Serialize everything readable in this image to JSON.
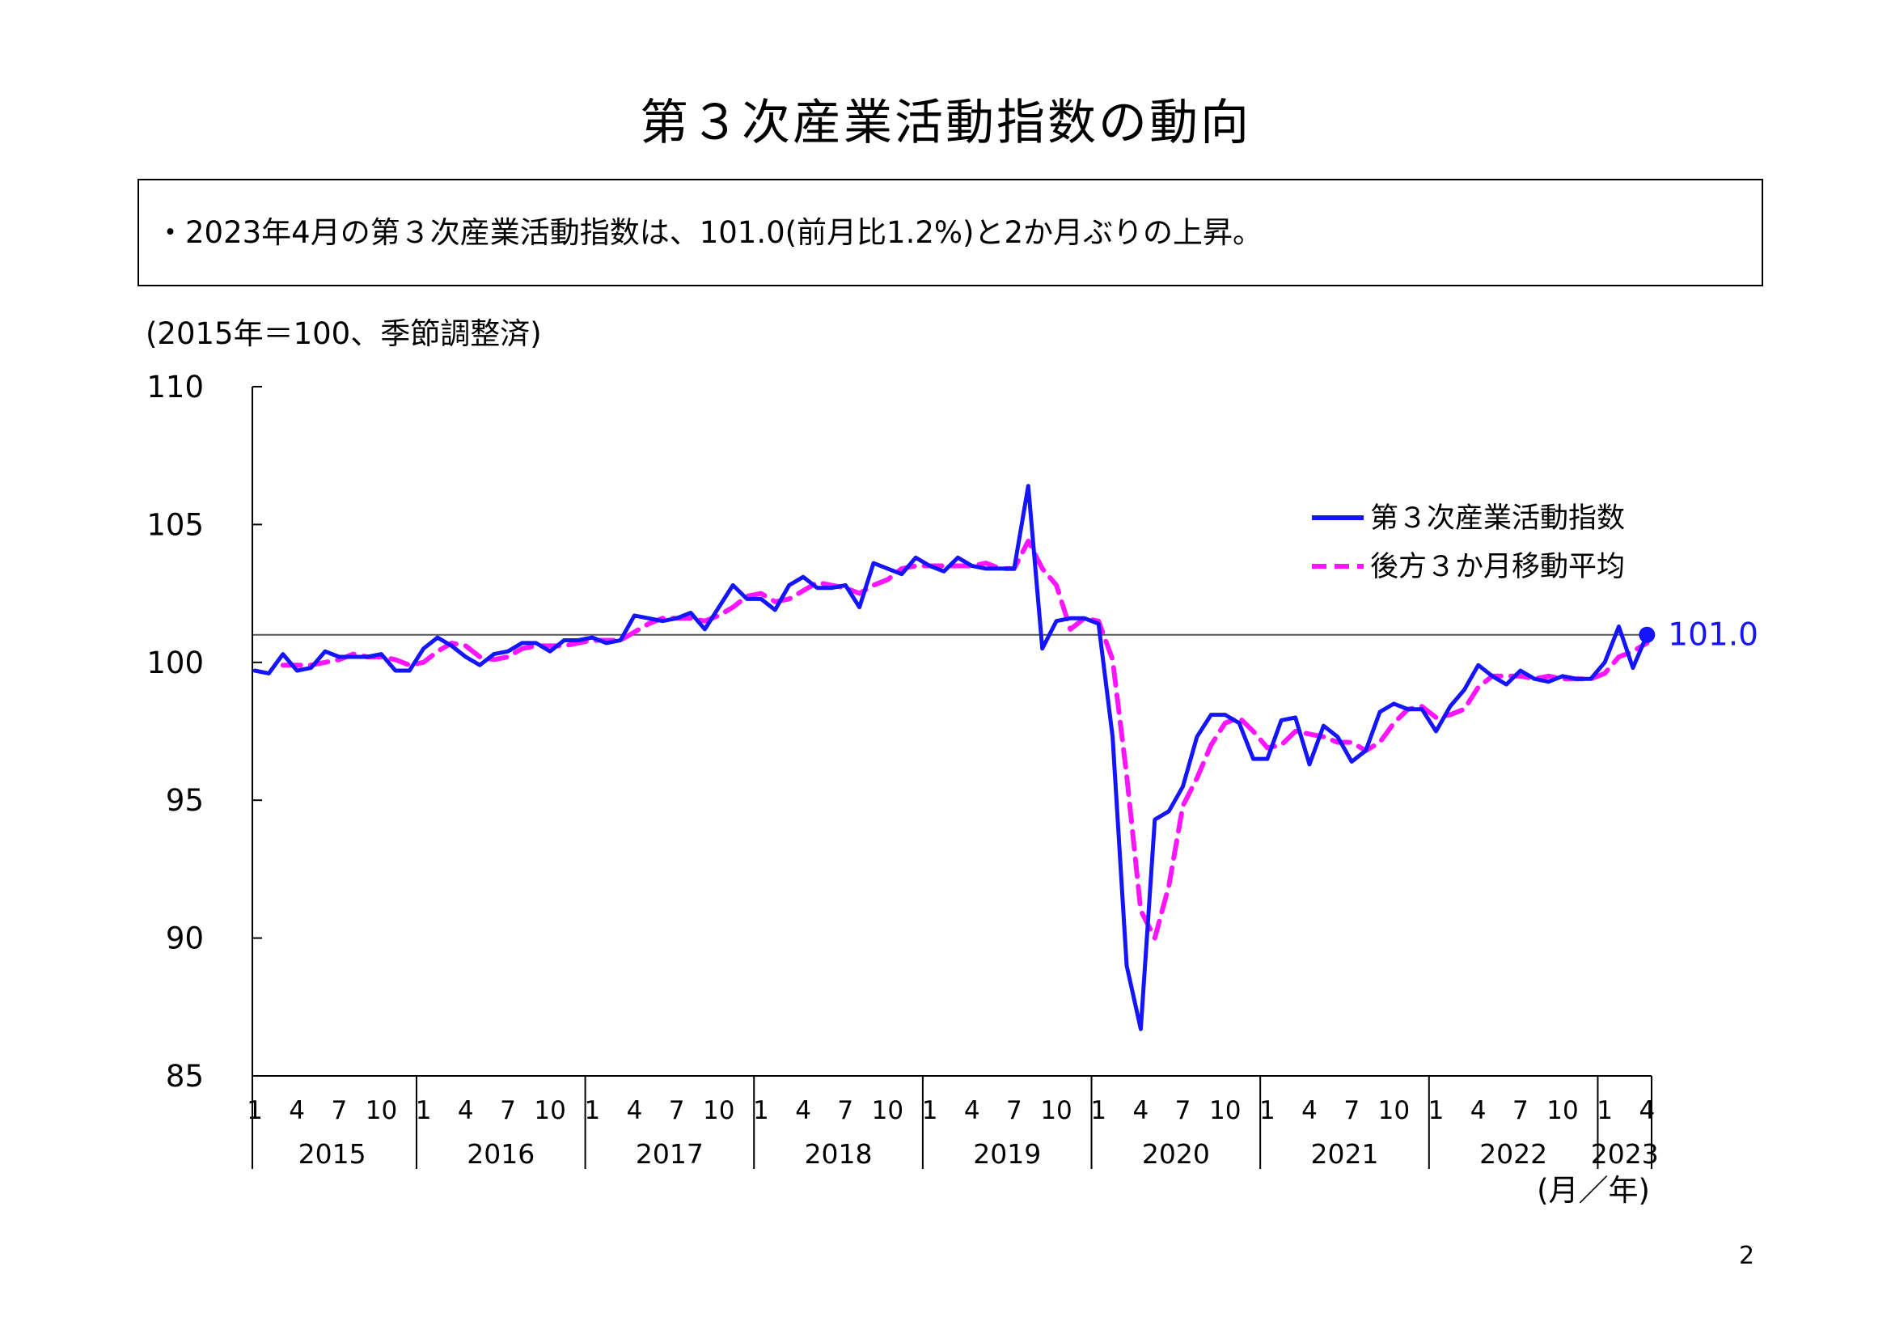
{
  "page": {
    "title": "第３次産業活動指数の動向",
    "summary": "・2023年4月の第３次産業活動指数は、101.0(前月比1.2%)と2か月ぶりの上昇。",
    "unit_note": "(2015年＝100、季節調整済)",
    "page_number": "2"
  },
  "chart_data": {
    "type": "line",
    "yticks": [
      "110",
      "105",
      "100",
      "95",
      "90",
      "85"
    ],
    "ylim": [
      85,
      110
    ],
    "month_tick_labels": [
      "1",
      "4",
      "7",
      "10"
    ],
    "last_year_tick_labels": [
      "1",
      "4"
    ],
    "years": [
      "2015",
      "2016",
      "2017",
      "2018",
      "2019",
      "2020",
      "2021",
      "2022",
      "2023"
    ],
    "x_unit_label": "(月／年)",
    "legend_position": "top-right",
    "reference_line_value": 101.0,
    "last_point_label": "101.0",
    "colors": {
      "index": "#1414ff",
      "moving_average": "#ff14ff",
      "reference": "#555555",
      "label": "#1414ff"
    },
    "series": [
      {
        "name": "第３次産業活動指数",
        "style": "solid",
        "values": [
          99.7,
          99.6,
          100.3,
          99.7,
          99.8,
          100.4,
          100.2,
          100.2,
          100.2,
          100.3,
          99.7,
          99.7,
          100.5,
          100.9,
          100.6,
          100.2,
          99.9,
          100.3,
          100.4,
          100.7,
          100.7,
          100.4,
          100.8,
          100.8,
          100.9,
          100.7,
          100.8,
          101.7,
          101.6,
          101.5,
          101.6,
          101.8,
          101.2,
          102.0,
          102.8,
          102.3,
          102.3,
          101.9,
          102.8,
          103.1,
          102.7,
          102.7,
          102.8,
          102.0,
          103.6,
          103.4,
          103.2,
          103.8,
          103.5,
          103.3,
          103.8,
          103.5,
          103.4,
          103.4,
          103.4,
          106.4,
          100.5,
          101.5,
          101.6,
          101.6,
          101.4,
          97.3,
          89.0,
          86.7,
          94.3,
          94.6,
          95.5,
          97.3,
          98.1,
          98.1,
          97.8,
          96.5,
          96.5,
          97.9,
          98.0,
          96.3,
          97.7,
          97.3,
          96.4,
          96.8,
          98.2,
          98.5,
          98.3,
          98.3,
          97.5,
          98.4,
          99.0,
          99.9,
          99.5,
          99.2,
          99.7,
          99.4,
          99.3,
          99.5,
          99.4,
          99.4,
          100.0,
          101.3,
          99.8,
          101.0
        ]
      },
      {
        "name": "後方３か月移動平均",
        "style": "dashed",
        "values": [
          null,
          null,
          99.9,
          99.9,
          99.9,
          100.0,
          100.1,
          100.3,
          100.2,
          100.2,
          100.1,
          99.9,
          100.0,
          100.4,
          100.7,
          100.6,
          100.2,
          100.1,
          100.2,
          100.5,
          100.6,
          100.6,
          100.6,
          100.7,
          100.8,
          100.8,
          100.8,
          101.1,
          101.4,
          101.6,
          101.6,
          101.6,
          101.5,
          101.7,
          102.0,
          102.4,
          102.5,
          102.2,
          102.3,
          102.6,
          102.9,
          102.8,
          102.7,
          102.5,
          102.8,
          103.0,
          103.4,
          103.5,
          103.5,
          103.5,
          103.5,
          103.5,
          103.6,
          103.4,
          103.4,
          104.4,
          103.4,
          102.8,
          101.2,
          101.6,
          101.5,
          100.1,
          95.9,
          91.0,
          90.0,
          91.9,
          94.8,
          95.8,
          97.0,
          97.8,
          98.0,
          97.5,
          96.9,
          97.0,
          97.5,
          97.4,
          97.3,
          97.1,
          97.1,
          96.8,
          97.1,
          97.8,
          98.3,
          98.4,
          98.0,
          98.1,
          98.3,
          99.1,
          99.5,
          99.5,
          99.5,
          99.4,
          99.5,
          99.4,
          99.4,
          99.4,
          99.6,
          100.2,
          100.4,
          100.7
        ]
      }
    ]
  }
}
